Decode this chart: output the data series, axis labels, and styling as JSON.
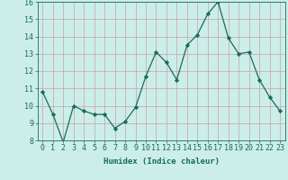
{
  "x": [
    0,
    1,
    2,
    3,
    4,
    5,
    6,
    7,
    8,
    9,
    10,
    11,
    12,
    13,
    14,
    15,
    16,
    17,
    18,
    19,
    20,
    21,
    22,
    23
  ],
  "y": [
    10.8,
    9.5,
    7.9,
    10.0,
    9.7,
    9.5,
    9.5,
    8.7,
    9.1,
    9.9,
    11.7,
    13.1,
    12.5,
    11.5,
    13.5,
    14.1,
    15.3,
    16.0,
    13.9,
    13.0,
    13.1,
    11.5,
    10.5,
    9.7
  ],
  "line_color": "#1a6b5a",
  "marker": "D",
  "marker_size": 2.2,
  "bg_color": "#cceee8",
  "grid_color": "#c8a0a8",
  "xlabel": "Humidex (Indice chaleur)",
  "ylim": [
    8,
    16
  ],
  "yticks": [
    8,
    9,
    10,
    11,
    12,
    13,
    14,
    15,
    16
  ],
  "xticks": [
    0,
    1,
    2,
    3,
    4,
    5,
    6,
    7,
    8,
    9,
    10,
    11,
    12,
    13,
    14,
    15,
    16,
    17,
    18,
    19,
    20,
    21,
    22,
    23
  ],
  "xlabel_fontsize": 6.5,
  "tick_fontsize": 6,
  "axis_color": "#1a6b5a",
  "linewidth": 0.9
}
